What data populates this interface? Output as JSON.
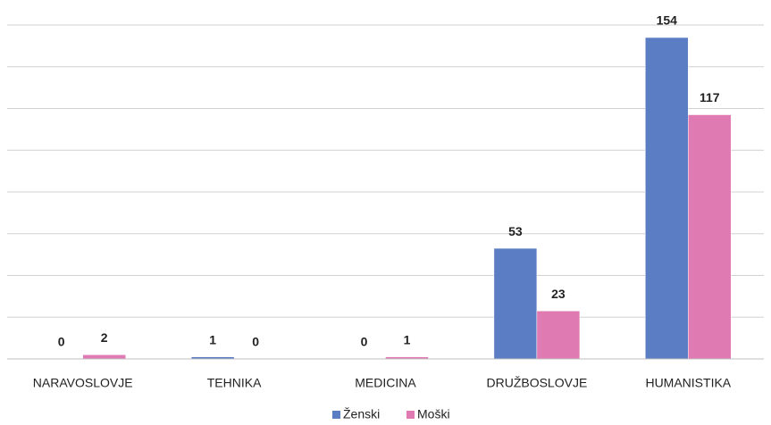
{
  "chart_data": {
    "type": "bar",
    "categories": [
      "NARAVOSLOVJE",
      "TEHNIKA",
      "MEDICINA",
      "DRUŽBOSLOVJE",
      "HUMANISTIKA"
    ],
    "series": [
      {
        "name": "Ženski",
        "color": "#5b7dc4",
        "values": [
          0,
          1,
          0,
          53,
          154
        ]
      },
      {
        "name": "Moški",
        "color": "#e07ab2",
        "values": [
          2,
          0,
          1,
          23,
          117
        ]
      }
    ],
    "ylim": [
      0,
      160
    ],
    "yticks": [
      0,
      20,
      40,
      60,
      80,
      100,
      120,
      140,
      160
    ],
    "grid": true,
    "legend": "bottom"
  }
}
